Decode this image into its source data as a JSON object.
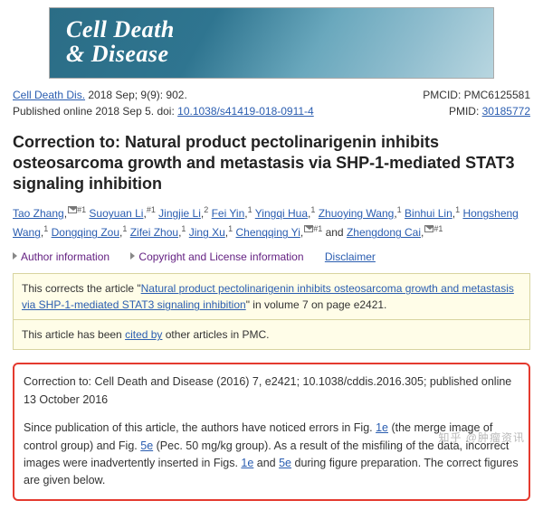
{
  "banner": {
    "line1": "Cell Death",
    "line2": "& Disease"
  },
  "meta": {
    "journal_link": "Cell Death Dis.",
    "citation_tail": " 2018 Sep; 9(9): 902.",
    "pub_online": "Published online 2018 Sep 5. doi: ",
    "doi": "10.1038/s41419-018-0911-4",
    "pmcid": "PMCID: PMC6125581",
    "pmid_label": "PMID: ",
    "pmid": "30185772"
  },
  "title": "Correction to: Natural product pectolinarigenin inhibits osteosarcoma growth and metastasis via SHP-1-mediated STAT3 signaling inhibition",
  "authors": [
    {
      "name": "Tao Zhang",
      "sup": "#1",
      "mail": true
    },
    {
      "name": "Suoyuan Li",
      "sup": "#1"
    },
    {
      "name": "Jingjie Li",
      "sup": "2"
    },
    {
      "name": "Fei Yin",
      "sup": "1"
    },
    {
      "name": "Yingqi Hua",
      "sup": "1"
    },
    {
      "name": "Zhuoying Wang",
      "sup": "1"
    },
    {
      "name": "Binhui Lin",
      "sup": "1"
    },
    {
      "name": "Hongsheng Wang",
      "sup": "1"
    },
    {
      "name": "Dongqing Zou",
      "sup": "1"
    },
    {
      "name": "Zifei Zhou",
      "sup": "1"
    },
    {
      "name": "Jing Xu",
      "sup": "1"
    },
    {
      "name": "Chenqqing Yi",
      "sup": "#1",
      "mail": true
    },
    {
      "name": "Zhengdong Cai",
      "sup": "#1",
      "mail": true,
      "and": true
    }
  ],
  "infobar": {
    "author_info": "Author information",
    "copyright": "Copyright and License information",
    "disclaimer": "Disclaimer"
  },
  "notice1": {
    "pre": "This corrects the article \"",
    "link": "Natural product pectolinarigenin inhibits osteosarcoma growth and metastasis via SHP-1-mediated STAT3 signaling inhibition",
    "post": "\" in volume 7 on page e2421."
  },
  "notice2": {
    "pre": "This article has been ",
    "link": "cited by",
    "post": " other articles in PMC."
  },
  "redbox": {
    "p1": "Correction to: Cell Death and Disease (2016) 7, e2421; 10.1038/cddis.2016.305; published online 13 October 2016",
    "p2a": "Since publication of this article, the authors have noticed errors in Fig. ",
    "l1": "1e",
    "p2b": " (the merge image of control group) and Fig. ",
    "l2": "5e",
    "p2c": " (Pec. 50 mg/kg group). As a result of the misfiling of the data, incorrect images were inadvertently inserted in Figs. ",
    "l3": "1e",
    "p2d": " and ",
    "l4": "5e",
    "p2e": " during figure preparation. The correct figures are given below."
  },
  "watermark": "知乎 @肿瘤资讯"
}
